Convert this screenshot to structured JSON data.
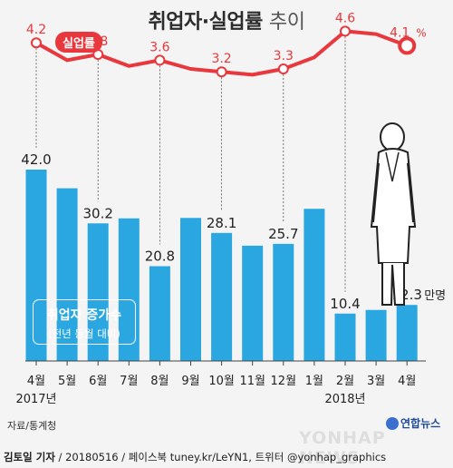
{
  "title_main": "취업자·실업률",
  "title_sub": "추이",
  "rate_label": "실업률",
  "legend": {
    "line1": "취업자 증가수",
    "line2": "(전년 동월 대비)"
  },
  "source": "자료/통계청",
  "credit": {
    "author": "김토일 기자",
    "rest": " / 20180516 / 페이스북 tuney.kr/LeYN1, 트위터 @yonhap_graphics"
  },
  "logo": "연합뉴스",
  "watermark": "YONHAP NEWS",
  "colors": {
    "bar": "#2aa6e0",
    "line": "#e8383d",
    "background": "#f4f4f4"
  },
  "chart_data": {
    "type": "bar+line",
    "categories": [
      "4월",
      "5월",
      "6월",
      "7월",
      "8월",
      "9월",
      "10월",
      "11월",
      "12월",
      "1월",
      "2월",
      "3월",
      "4월"
    ],
    "year_labels": [
      {
        "index": 0,
        "text": "2017년"
      },
      {
        "index": 10,
        "text": "2018년"
      }
    ],
    "bars": {
      "values": [
        42.0,
        37.9,
        30.2,
        31.3,
        20.8,
        31.4,
        28.1,
        25.3,
        25.7,
        33.4,
        10.4,
        11.2,
        12.3
      ],
      "labels": [
        "42.0",
        "",
        "30.2",
        "",
        "20.8",
        "",
        "28.1",
        "",
        "25.7",
        "",
        "10.4",
        "",
        "12.3"
      ],
      "unit": "만명",
      "ylim": [
        0,
        45
      ]
    },
    "line": {
      "values": [
        4.2,
        3.6,
        3.8,
        3.4,
        3.6,
        3.3,
        3.2,
        3.1,
        3.3,
        3.7,
        4.6,
        4.5,
        4.1
      ],
      "labels": [
        "4.2",
        "",
        "3.8",
        "",
        "3.6",
        "",
        "3.2",
        "",
        "3.3",
        "",
        "4.6",
        "",
        "4.1"
      ],
      "unit": "%",
      "ylim": [
        2.5,
        5.0
      ]
    }
  }
}
